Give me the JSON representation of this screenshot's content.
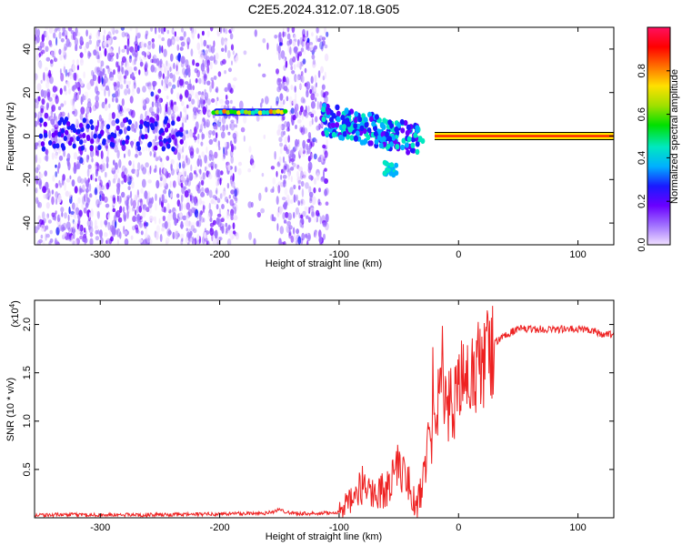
{
  "figure": {
    "title": "C2E5.2024.312.07.18.G05"
  },
  "chart_data": [
    {
      "type": "heatmap",
      "title": "C2E5.2024.312.07.18.G05",
      "xlabel": "Height of straight line (km)",
      "ylabel": "Frequency (Hz)",
      "xlim": [
        -355,
        130
      ],
      "ylim": [
        -50,
        50
      ],
      "x_ticks": [
        -300,
        -200,
        -100,
        0,
        100
      ],
      "y_ticks": [
        -40,
        -20,
        0,
        20,
        40
      ],
      "x_tick_labels": [
        "-300",
        "-200",
        "-100",
        "0",
        "100"
      ],
      "y_tick_labels": [
        "-40",
        "-20",
        "0",
        "20",
        "40"
      ],
      "colorbar": {
        "label": "Normalized spectral amplitude",
        "range": [
          0,
          1
        ],
        "ticks": [
          0.0,
          0.2,
          0.4,
          0.6,
          0.8
        ],
        "tick_labels": [
          "0.0",
          "0.2",
          "0.4",
          "0.6",
          "0.8"
        ],
        "colors": [
          "#f0e0ff",
          "#a070ff",
          "#6a00ff",
          "#1a1aff",
          "#00b0ff",
          "#00e8c0",
          "#00e000",
          "#a0e000",
          "#ffe000",
          "#ff7000",
          "#ff0000",
          "#ff1060"
        ]
      },
      "features": {
        "scatter_region_x": [
          -355,
          -110
        ],
        "band_segment": {
          "x": [
            -205,
            -145
          ],
          "y": 11
        },
        "tail": {
          "x": [
            -115,
            -30
          ]
        },
        "carrier_line": {
          "x": [
            -20,
            130
          ],
          "y": 0
        }
      }
    },
    {
      "type": "line",
      "xlabel": "Height of straight line (km)",
      "ylabel": "SNR (10 * v/v)",
      "multiplier_label": "(x10",
      "multiplier_exponent": "4",
      "multiplier_close": ")",
      "xlim": [
        -355,
        130
      ],
      "ylim": [
        0,
        2.25
      ],
      "x_ticks": [
        -300,
        -200,
        -100,
        0,
        100
      ],
      "y_ticks": [
        0.5,
        1.0,
        1.5,
        2.0
      ],
      "x_tick_labels": [
        "-300",
        "-200",
        "-100",
        "0",
        "100"
      ],
      "y_tick_labels": [
        "0.5",
        "1.0",
        "1.5",
        "2.0"
      ],
      "color": "#ee2222",
      "x": [
        -355,
        -300,
        -250,
        -200,
        -160,
        -150,
        -140,
        -120,
        -100,
        -90,
        -80,
        -70,
        -60,
        -50,
        -40,
        -35,
        -30,
        -25,
        -20,
        -15,
        -10,
        -5,
        0,
        10,
        20,
        30,
        40,
        50,
        60,
        70,
        80,
        90,
        100,
        110,
        120,
        130
      ],
      "y": [
        0.03,
        0.03,
        0.03,
        0.04,
        0.05,
        0.08,
        0.05,
        0.04,
        0.06,
        0.15,
        0.35,
        0.25,
        0.3,
        0.55,
        0.3,
        0.1,
        0.35,
        0.8,
        1.0,
        1.3,
        1.1,
        1.2,
        1.35,
        1.45,
        1.6,
        1.8,
        1.9,
        1.95,
        1.95,
        1.95,
        1.95,
        1.95,
        1.95,
        1.95,
        1.9,
        1.9
      ]
    }
  ]
}
